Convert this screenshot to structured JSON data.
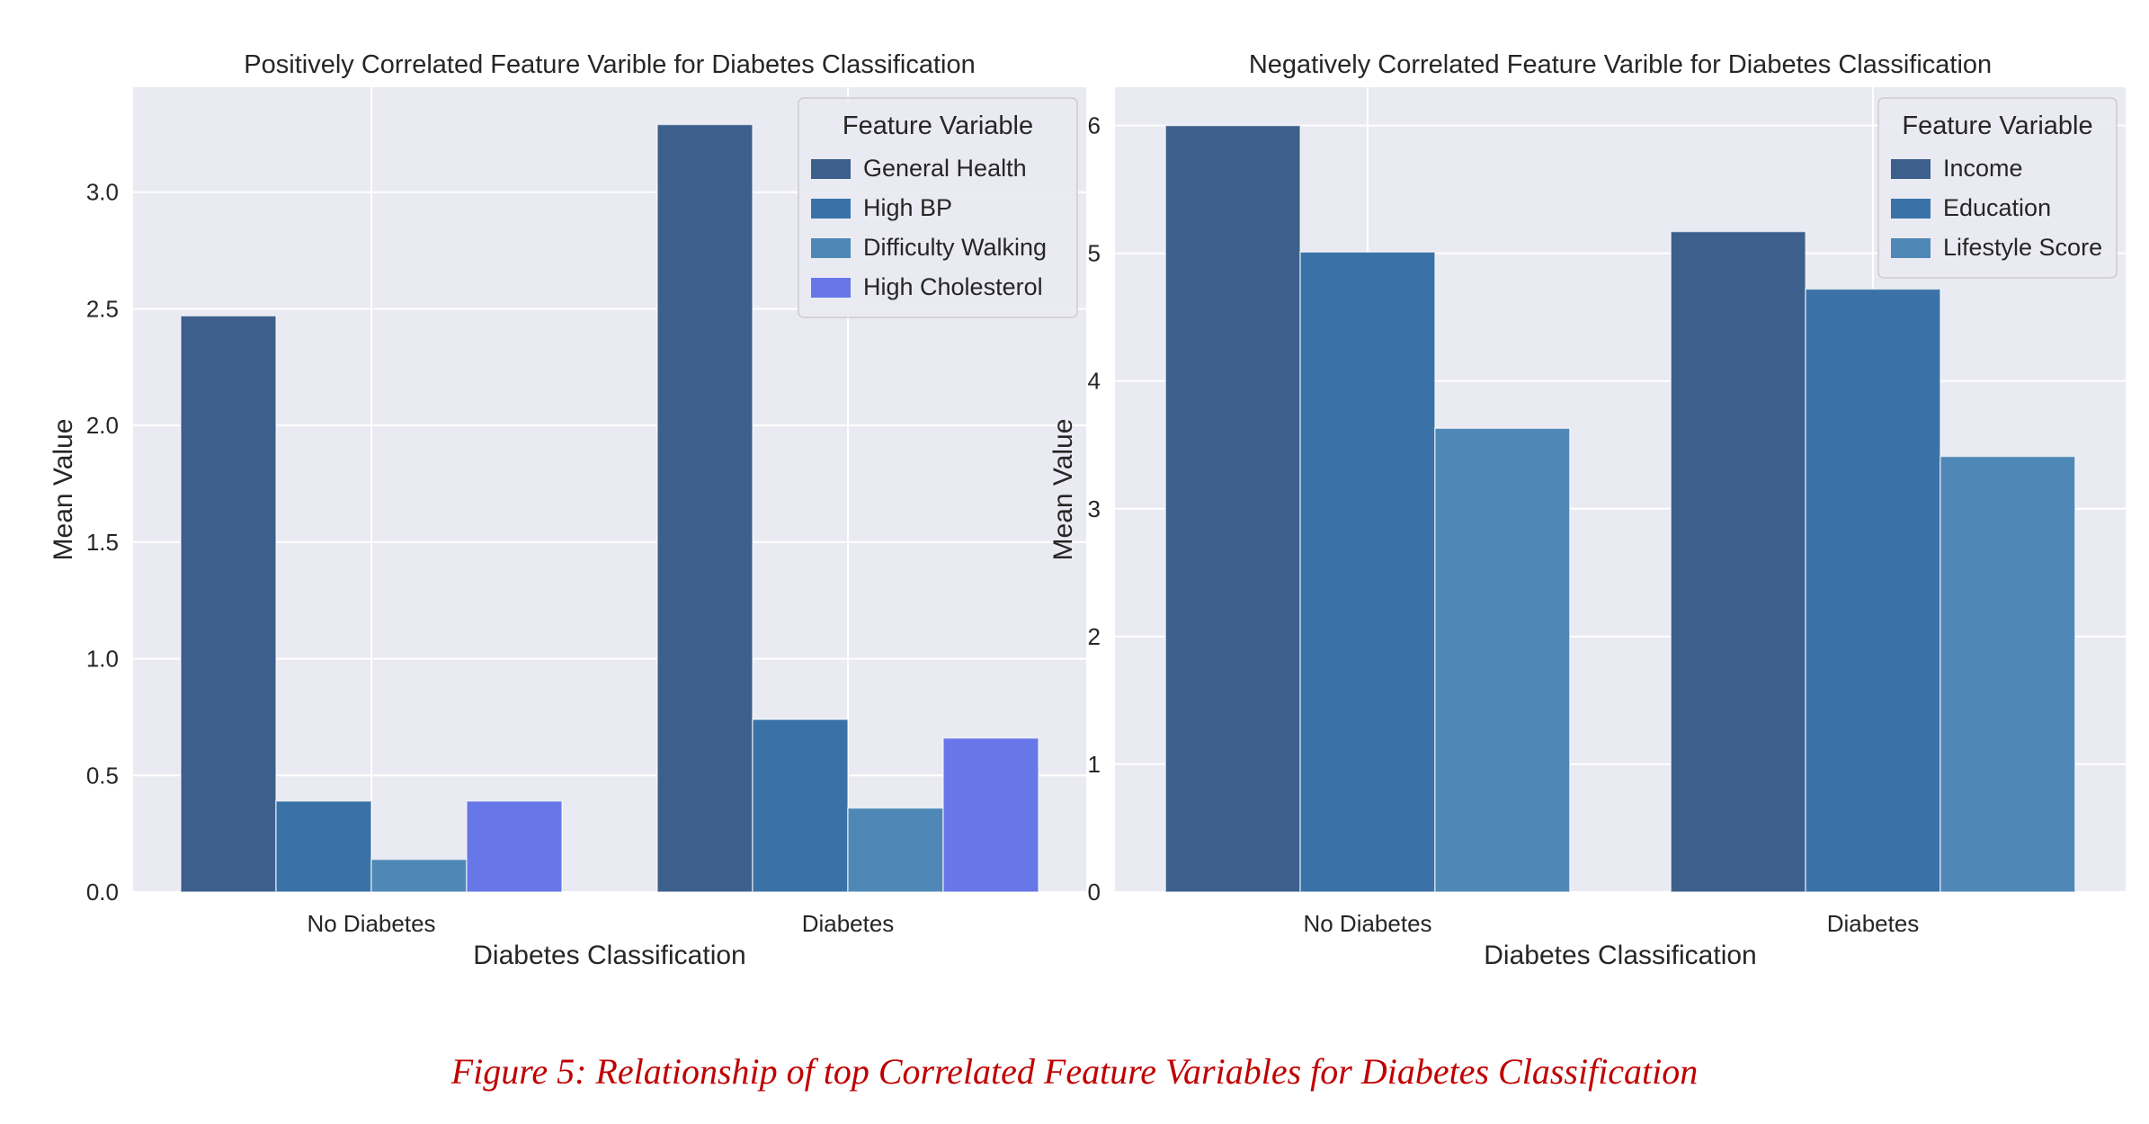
{
  "caption": "Figure 5: Relationship of top Correlated Feature Variables for Diabetes Classification",
  "colors": {
    "plot_background": "#eaeaf2",
    "grid": "#ffffff",
    "text": "#262626"
  },
  "chart_data": [
    {
      "type": "bar",
      "title": "Positively Correlated Feature Varible for Diabetes Classification",
      "xlabel": "Diabetes Classification",
      "ylabel": "Mean Value",
      "categories": [
        "No Diabetes",
        "Diabetes"
      ],
      "ylim": [
        0,
        3.45
      ],
      "yticks": [
        "0.0",
        "0.5",
        "1.0",
        "1.5",
        "2.0",
        "2.5",
        "3.0"
      ],
      "ytick_values": [
        0,
        0.5,
        1.0,
        1.5,
        2.0,
        2.5,
        3.0
      ],
      "grid": true,
      "legend_title": "Feature Variable",
      "legend_position": "top-right",
      "series": [
        {
          "name": "General Health",
          "values": [
            2.47,
            3.29
          ],
          "color": "#3d5f8c"
        },
        {
          "name": "High BP",
          "values": [
            0.39,
            0.74
          ],
          "color": "#3a72a8"
        },
        {
          "name": "Difficulty Walking",
          "values": [
            0.14,
            0.36
          ],
          "color": "#4f88b6"
        },
        {
          "name": "High Cholesterol",
          "values": [
            0.39,
            0.66
          ],
          "color": "#6777e8"
        }
      ]
    },
    {
      "type": "bar",
      "title": "Negatively Correlated Feature Varible for Diabetes Classification",
      "xlabel": "Diabetes Classification",
      "ylabel": "Mean Value",
      "categories": [
        "No Diabetes",
        "Diabetes"
      ],
      "ylim": [
        0,
        6.3
      ],
      "yticks": [
        "0",
        "1",
        "2",
        "3",
        "4",
        "5",
        "6"
      ],
      "ytick_values": [
        0,
        1,
        2,
        3,
        4,
        5,
        6
      ],
      "grid": true,
      "legend_title": "Feature Variable",
      "legend_position": "top-right",
      "series": [
        {
          "name": "Income",
          "values": [
            6.0,
            5.17
          ],
          "color": "#3d5f8c"
        },
        {
          "name": "Education",
          "values": [
            5.01,
            4.72
          ],
          "color": "#3a72a8"
        },
        {
          "name": "Lifestyle Score",
          "values": [
            3.63,
            3.41
          ],
          "color": "#4f88b6"
        }
      ]
    }
  ]
}
